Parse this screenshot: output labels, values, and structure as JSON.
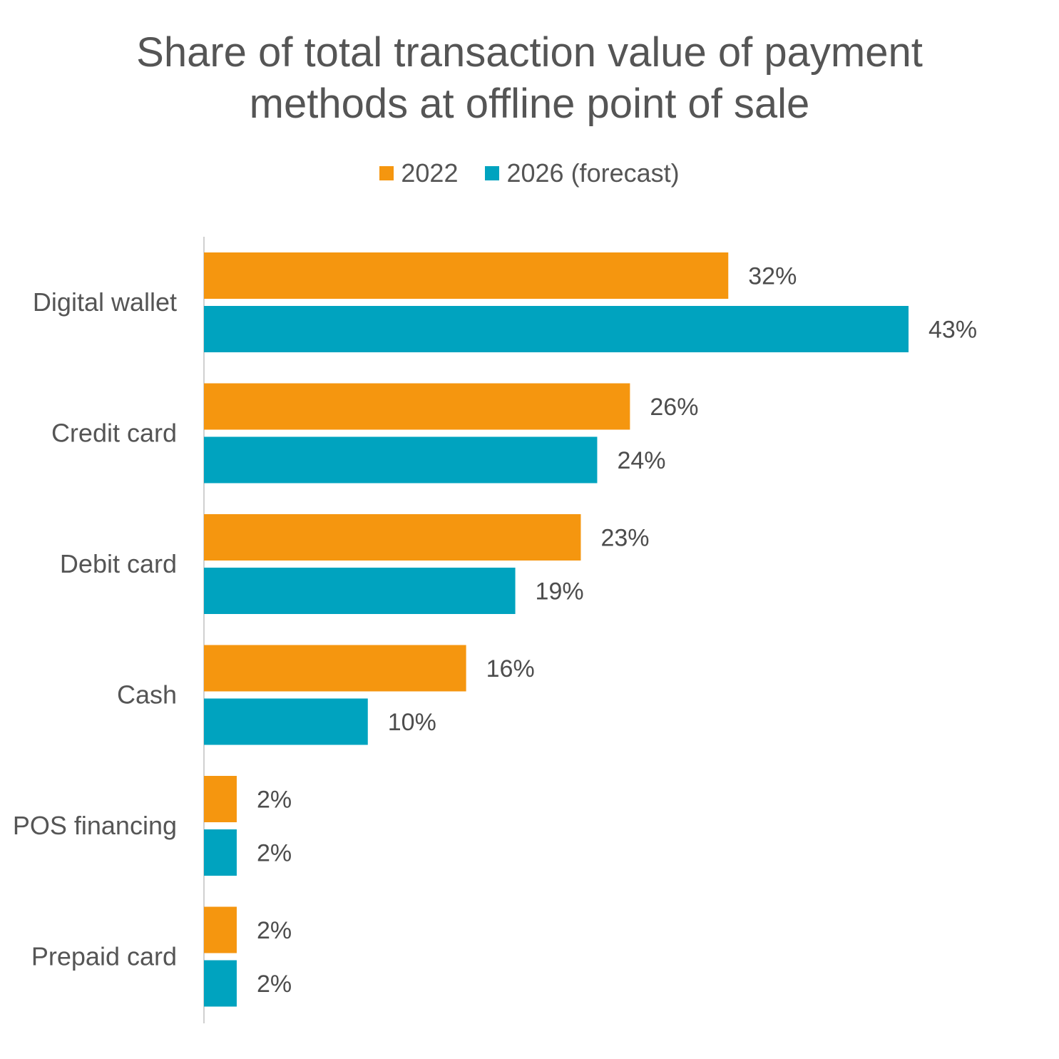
{
  "chart_data": {
    "type": "bar",
    "orientation": "horizontal",
    "title_lines": [
      "Share of total transaction value of payment",
      "methods at offline point of sale"
    ],
    "categories": [
      "Digital wallet",
      "Credit card",
      "Debit card",
      "Cash",
      "POS financing",
      "Prepaid card"
    ],
    "series": [
      {
        "name": "2022",
        "color": "#f5960f",
        "values": [
          32,
          26,
          23,
          16,
          2,
          2
        ],
        "labels": [
          "32%",
          "26%",
          "23%",
          "16%",
          "2%",
          "2%"
        ]
      },
      {
        "name": "2026 (forecast)",
        "color": "#00a3bf",
        "values": [
          43,
          24,
          19,
          10,
          2,
          2
        ],
        "labels": [
          "43%",
          "24%",
          "19%",
          "10%",
          "2%",
          "2%"
        ]
      }
    ],
    "xlim": [
      0,
      45
    ],
    "grid": false,
    "legend_position": "top-center"
  }
}
